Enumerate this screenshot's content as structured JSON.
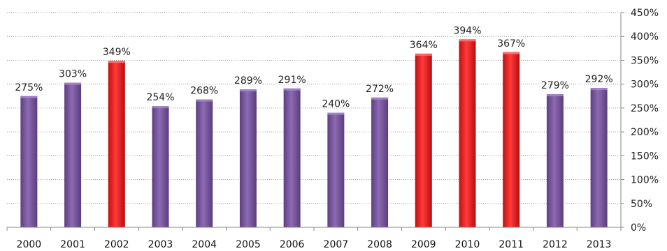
{
  "chart_data": {
    "type": "bar",
    "categories": [
      "2000",
      "2001",
      "2002",
      "2003",
      "2004",
      "2005",
      "2006",
      "2007",
      "2008",
      "2009",
      "2010",
      "2011",
      "2012",
      "2013"
    ],
    "values": [
      275,
      303,
      349,
      254,
      268,
      289,
      291,
      240,
      272,
      364,
      394,
      367,
      279,
      292
    ],
    "data_labels": [
      "275%",
      "303%",
      "349%",
      "254%",
      "268%",
      "289%",
      "291%",
      "240%",
      "272%",
      "364%",
      "394%",
      "367%",
      "279%",
      "292%"
    ],
    "highlighted": [
      false,
      false,
      true,
      false,
      false,
      false,
      false,
      false,
      false,
      true,
      true,
      true,
      false,
      false
    ],
    "ylim": [
      0,
      450
    ],
    "yticks": [
      0,
      50,
      100,
      150,
      200,
      250,
      300,
      350,
      400,
      450
    ],
    "ytick_labels": [
      "0%",
      "50%",
      "100%",
      "150%",
      "200%",
      "250%",
      "300%",
      "350%",
      "400%",
      "450%"
    ],
    "y_axis_position": "right",
    "grid": true,
    "legend": "none",
    "colors": {
      "default_bar": "#7b57a0",
      "highlight_bar": "#ee1c1c",
      "gridline": "#9a9a9a",
      "axis": "#888888"
    }
  }
}
